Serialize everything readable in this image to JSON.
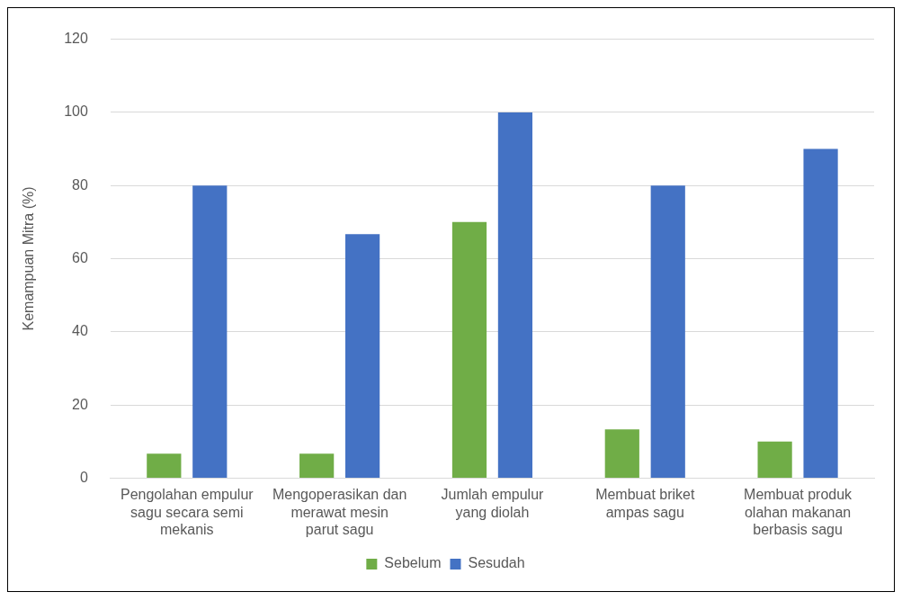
{
  "chart_data": {
    "type": "bar",
    "ylabel": "Kemampuan Mitra (%)",
    "categories": [
      "Pengolahan empulur sagu secara semi mekanis",
      "Mengoperasikan dan merawat mesin parut sagu",
      "Jumlah empulur yang diolah",
      "Membuat briket ampas sagu",
      "Membuat produk olahan makanan berbasis sagu"
    ],
    "series": [
      {
        "name": "Sebelum",
        "color": "#70ad47",
        "values": [
          6.7,
          6.7,
          70,
          13.3,
          10
        ]
      },
      {
        "name": "Sesudah",
        "color": "#4472c4",
        "values": [
          80,
          66.7,
          100,
          80,
          90
        ]
      }
    ],
    "ylim": [
      0,
      120
    ],
    "yticks": [
      0,
      20,
      40,
      60,
      80,
      100,
      120
    ],
    "grid": "y",
    "legend": "bottom"
  }
}
